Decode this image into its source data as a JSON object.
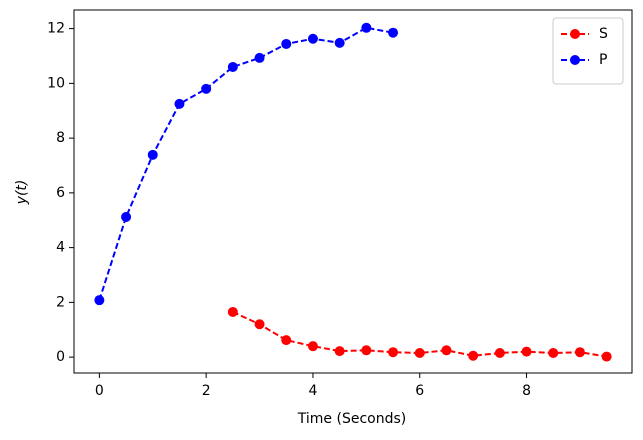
{
  "chart_data": {
    "type": "line",
    "xlabel": "Time (Seconds)",
    "ylabel": "y(t)",
    "series": [
      {
        "name": "S",
        "color": "#ff0000",
        "x": [
          2.5,
          3,
          3.5,
          4,
          4.5,
          5,
          5.5,
          6,
          6.5,
          7,
          7.5,
          8,
          8.5,
          9,
          9.5
        ],
        "values": [
          1.65,
          1.2,
          0.62,
          0.4,
          0.22,
          0.25,
          0.18,
          0.15,
          0.25,
          0.05,
          0.15,
          0.2,
          0.15,
          0.18,
          0.02
        ]
      },
      {
        "name": "P",
        "color": "#0000ff",
        "x": [
          0,
          0.5,
          1,
          1.5,
          2,
          2.5,
          3,
          3.5,
          4,
          4.5,
          5,
          5.5
        ],
        "values": [
          2.08,
          5.12,
          7.39,
          9.25,
          9.8,
          10.6,
          10.93,
          11.44,
          11.63,
          11.48,
          12.03,
          11.85
        ]
      }
    ],
    "xlim": [
      -0.475,
      9.975
    ],
    "xticks": [
      0,
      2,
      4,
      6,
      8
    ],
    "ylim": [
      -0.58,
      12.68
    ],
    "yticks": [
      0,
      2,
      4,
      6,
      8,
      10,
      12
    ],
    "legend": "upper right",
    "line_style": "dashed"
  }
}
